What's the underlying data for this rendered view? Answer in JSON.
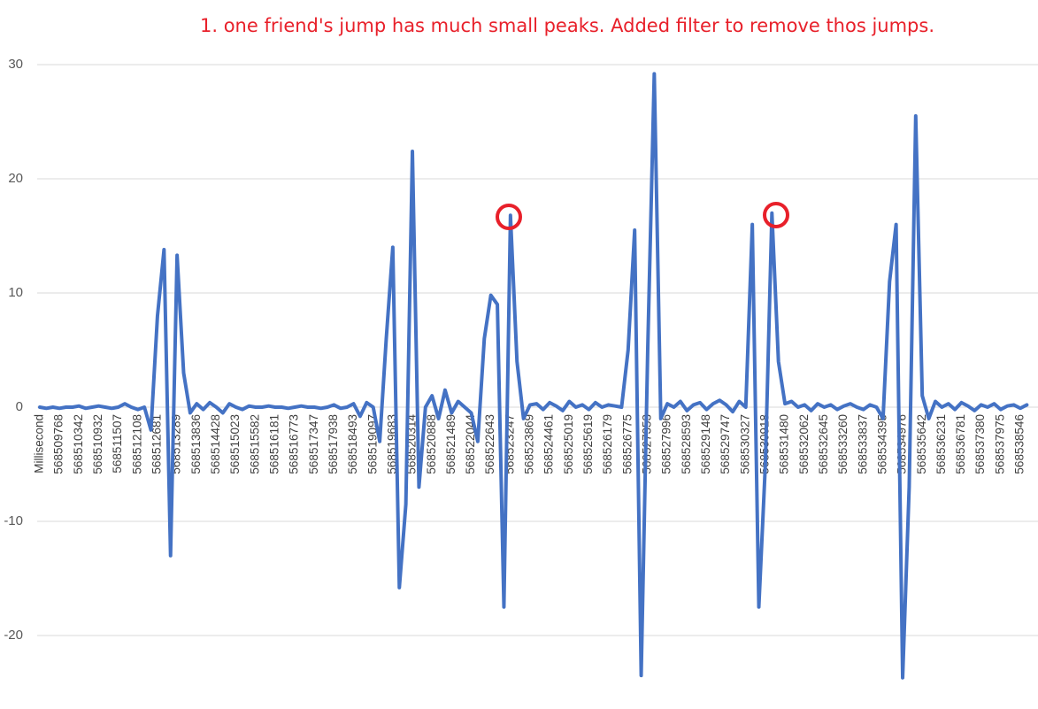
{
  "chart_data": {
    "type": "line",
    "annotation": "1. one friend's jump has much small peaks. Added filter to remove thos jumps.",
    "categories": [
      "Millisecond",
      null,
      null,
      "568509768",
      null,
      null,
      "568510342",
      null,
      null,
      "568510932",
      null,
      null,
      "568511507",
      null,
      null,
      "568512108",
      null,
      null,
      "568512681",
      null,
      null,
      "568513289",
      null,
      null,
      "568513836",
      null,
      null,
      "568514428",
      null,
      null,
      "568515023",
      null,
      null,
      "568515582",
      null,
      null,
      "568516181",
      null,
      null,
      "568516773",
      null,
      null,
      "568517347",
      null,
      null,
      "568517938",
      null,
      null,
      "568518493",
      null,
      null,
      "568519097",
      null,
      null,
      "568519683",
      null,
      null,
      "568520314",
      null,
      null,
      "568520888",
      null,
      null,
      "568521489",
      null,
      null,
      "568522044",
      null,
      null,
      "568522643",
      null,
      null,
      "568523247",
      null,
      null,
      "568523869",
      null,
      null,
      "568524461",
      null,
      null,
      "568525019",
      null,
      null,
      "568525619",
      null,
      null,
      "568526179",
      null,
      null,
      "568526775",
      null,
      null,
      "568527353",
      null,
      null,
      "568527996",
      null,
      null,
      "568528593",
      null,
      null,
      "568529148",
      null,
      null,
      "568529747",
      null,
      null,
      "568530327",
      null,
      null,
      "568530918",
      null,
      null,
      "568531480",
      null,
      null,
      "568532062",
      null,
      null,
      "568532645",
      null,
      null,
      "568533260",
      null,
      null,
      "568533837",
      null,
      null,
      "568534395",
      null,
      null,
      "568534976",
      null,
      null,
      "568535642",
      null,
      null,
      "568536231",
      null,
      null,
      "568536781",
      null,
      null,
      "568537380",
      null,
      null,
      "568537975",
      null,
      null,
      "568538546",
      null
    ],
    "values": [
      0,
      -0.1,
      0,
      -0.1,
      0,
      0,
      0.1,
      -0.1,
      0,
      0.1,
      0,
      -0.1,
      0,
      0.3,
      0,
      -0.2,
      0,
      -2,
      8,
      13.8,
      -13,
      13.3,
      3,
      -0.5,
      0.3,
      -0.2,
      0.4,
      0,
      -0.5,
      0.3,
      0,
      -0.2,
      0.1,
      0,
      0,
      0.1,
      0,
      0,
      -0.1,
      0,
      0.1,
      0,
      0,
      -0.1,
      0,
      0.2,
      -0.1,
      0,
      0.3,
      -0.8,
      0.4,
      0,
      -3,
      6,
      14,
      -15.8,
      -8.5,
      22.4,
      -7,
      0,
      1,
      -1,
      1.5,
      -0.5,
      0.5,
      0,
      -0.5,
      -3,
      6,
      9.8,
      9,
      -17.5,
      16.8,
      4,
      -1,
      0.2,
      0.3,
      -0.2,
      0.4,
      0.1,
      -0.3,
      0.5,
      0,
      0.2,
      -0.2,
      0.4,
      0,
      0.2,
      0.1,
      0,
      5,
      15.5,
      -23.5,
      5,
      29.2,
      -1,
      0.3,
      0,
      0.5,
      -0.3,
      0.2,
      0.4,
      -0.2,
      0.3,
      0.6,
      0.2,
      -0.4,
      0.5,
      0,
      16,
      -17.5,
      -5,
      17,
      4,
      0.3,
      0.5,
      0,
      0.2,
      -0.3,
      0.3,
      0,
      0.2,
      -0.2,
      0.1,
      0.3,
      0,
      -0.2,
      0.2,
      0,
      -1,
      11,
      16,
      -23.7,
      -7,
      25.5,
      1,
      -1,
      0.5,
      0,
      0.3,
      -0.2,
      0.4,
      0.1,
      -0.3,
      0.2,
      0,
      0.3,
      -0.2,
      0.1,
      0.2,
      -0.1,
      0.2
    ],
    "color": "#4472c4",
    "ylim": [
      -26,
      30
    ],
    "yticks": [
      -20,
      -10,
      0,
      10,
      20,
      30
    ],
    "grid": true
  }
}
